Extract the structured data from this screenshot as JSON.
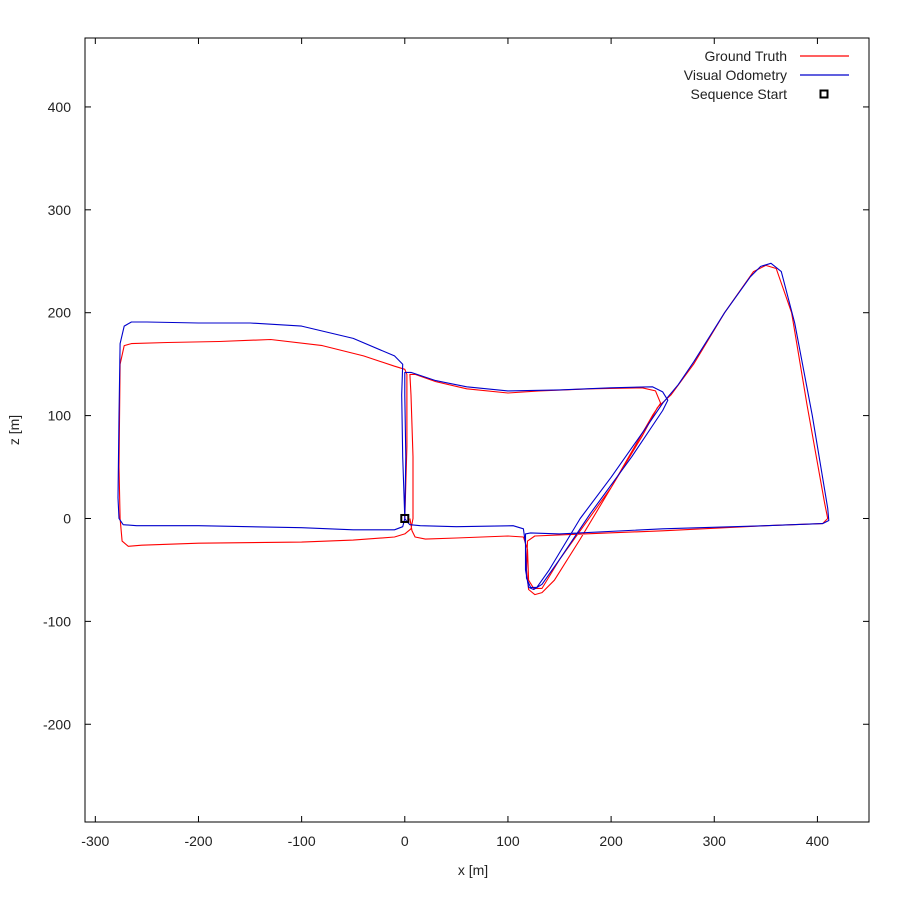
{
  "chart_data": {
    "type": "line",
    "title": "",
    "xlabel": "x [m]",
    "ylabel": "z [m]",
    "xlim": [
      -310,
      450
    ],
    "ylim": [
      -295,
      467
    ],
    "xticks": [
      -300,
      -200,
      -100,
      0,
      100,
      200,
      300,
      400
    ],
    "yticks": [
      -200,
      -100,
      0,
      100,
      200,
      300,
      400
    ],
    "tick_labels_x": [
      "-300",
      "-200",
      "-100",
      "0",
      "100",
      "200",
      "300",
      "400"
    ],
    "tick_labels_y": [
      "-200",
      "-100",
      "0",
      "100",
      "200",
      "300",
      "400"
    ],
    "grid": false,
    "legend_position": "top-right",
    "series": [
      {
        "name": "Ground Truth",
        "color": "#ff0000",
        "points": [
          [
            0,
            0
          ],
          [
            2,
            70
          ],
          [
            2,
            140
          ],
          [
            0,
            145
          ],
          [
            -10,
            148
          ],
          [
            -40,
            158
          ],
          [
            -80,
            168
          ],
          [
            -130,
            174
          ],
          [
            -180,
            172
          ],
          [
            -230,
            171
          ],
          [
            -265,
            170
          ],
          [
            -272,
            168
          ],
          [
            -276,
            150
          ],
          [
            -277,
            50
          ],
          [
            -276,
            0
          ],
          [
            -274,
            -22
          ],
          [
            -268,
            -27
          ],
          [
            -255,
            -26
          ],
          [
            -200,
            -24
          ],
          [
            -100,
            -23
          ],
          [
            -50,
            -21
          ],
          [
            -10,
            -18
          ],
          [
            0,
            -15
          ],
          [
            6,
            -10
          ],
          [
            8,
            0
          ],
          [
            8,
            60
          ],
          [
            6,
            120
          ],
          [
            5,
            140
          ],
          [
            10,
            140
          ],
          [
            30,
            133
          ],
          [
            60,
            126
          ],
          [
            100,
            122
          ],
          [
            130,
            124
          ],
          [
            180,
            126
          ],
          [
            230,
            127
          ],
          [
            243,
            124
          ],
          [
            248,
            112
          ],
          [
            240,
            100
          ],
          [
            200,
            30
          ],
          [
            170,
            -20
          ],
          [
            145,
            -60
          ],
          [
            133,
            -72
          ],
          [
            126,
            -74
          ],
          [
            120,
            -69
          ],
          [
            118,
            -50
          ],
          [
            119,
            -22
          ],
          [
            126,
            -17
          ],
          [
            150,
            -16
          ],
          [
            250,
            -12
          ],
          [
            350,
            -7
          ],
          [
            405,
            -5
          ],
          [
            410,
            0
          ],
          [
            407,
            15
          ],
          [
            390,
            110
          ],
          [
            375,
            200
          ],
          [
            360,
            243
          ],
          [
            350,
            246
          ],
          [
            338,
            240
          ],
          [
            310,
            200
          ],
          [
            280,
            150
          ],
          [
            258,
            120
          ],
          [
            245,
            108
          ],
          [
            230,
            80
          ],
          [
            200,
            30
          ],
          [
            150,
            -40
          ],
          [
            133,
            -68
          ],
          [
            125,
            -68
          ],
          [
            120,
            -60
          ],
          [
            119,
            -30
          ],
          [
            115,
            -18
          ],
          [
            100,
            -17
          ],
          [
            50,
            -19
          ],
          [
            20,
            -20
          ],
          [
            10,
            -18
          ],
          [
            7,
            -12
          ],
          [
            5,
            0
          ]
        ]
      },
      {
        "name": "Visual Odometry",
        "color": "#0000cc",
        "points": [
          [
            0,
            0
          ],
          [
            -2,
            60
          ],
          [
            -3,
            120
          ],
          [
            -2,
            150
          ],
          [
            -10,
            158
          ],
          [
            -50,
            175
          ],
          [
            -100,
            187
          ],
          [
            -150,
            190
          ],
          [
            -200,
            190
          ],
          [
            -250,
            191
          ],
          [
            -265,
            191
          ],
          [
            -272,
            187
          ],
          [
            -276,
            170
          ],
          [
            -277,
            100
          ],
          [
            -278,
            20
          ],
          [
            -277,
            0
          ],
          [
            -273,
            -6
          ],
          [
            -260,
            -7
          ],
          [
            -200,
            -7
          ],
          [
            -100,
            -9
          ],
          [
            -50,
            -11
          ],
          [
            -10,
            -11
          ],
          [
            -2,
            -8
          ],
          [
            0,
            0
          ],
          [
            1,
            60
          ],
          [
            0,
            120
          ],
          [
            0,
            142
          ],
          [
            6,
            142
          ],
          [
            30,
            134
          ],
          [
            60,
            128
          ],
          [
            100,
            124
          ],
          [
            150,
            125
          ],
          [
            200,
            127
          ],
          [
            240,
            128
          ],
          [
            250,
            123
          ],
          [
            255,
            115
          ],
          [
            250,
            105
          ],
          [
            220,
            60
          ],
          [
            180,
            5
          ],
          [
            150,
            -40
          ],
          [
            133,
            -64
          ],
          [
            125,
            -69
          ],
          [
            120,
            -67
          ],
          [
            117,
            -50
          ],
          [
            117,
            -15
          ],
          [
            122,
            -14
          ],
          [
            150,
            -15
          ],
          [
            250,
            -10
          ],
          [
            350,
            -7
          ],
          [
            405,
            -5
          ],
          [
            411,
            -2
          ],
          [
            410,
            10
          ],
          [
            395,
            100
          ],
          [
            378,
            190
          ],
          [
            365,
            240
          ],
          [
            355,
            248
          ],
          [
            345,
            245
          ],
          [
            335,
            235
          ],
          [
            310,
            200
          ],
          [
            280,
            152
          ],
          [
            265,
            130
          ],
          [
            250,
            112
          ],
          [
            235,
            90
          ],
          [
            200,
            40
          ],
          [
            170,
            0
          ],
          [
            140,
            -50
          ],
          [
            128,
            -67
          ],
          [
            122,
            -67
          ],
          [
            118,
            -58
          ],
          [
            117,
            -25
          ],
          [
            115,
            -10
          ],
          [
            105,
            -7
          ],
          [
            50,
            -8
          ],
          [
            15,
            -7
          ],
          [
            5,
            -6
          ],
          [
            2,
            -3
          ],
          [
            0,
            0
          ]
        ]
      }
    ],
    "markers": [
      {
        "name": "Sequence Start",
        "x": 0,
        "y": 0,
        "shape": "square",
        "color": "#000000"
      }
    ]
  }
}
